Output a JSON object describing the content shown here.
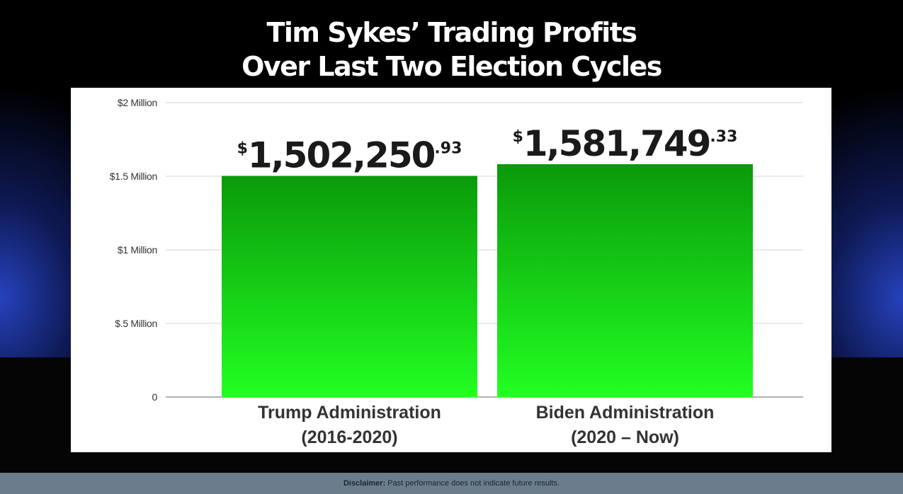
{
  "chart_data": {
    "type": "bar",
    "title_lines": [
      "Tim Sykes’ Trading Profits",
      "Over Last Two Election Cycles"
    ],
    "categories": [
      {
        "line1": "Trump Administration",
        "line2": "(2016-2020)"
      },
      {
        "line1": "Biden Administration",
        "line2": "(2020 – Now)"
      }
    ],
    "values": [
      1502250.93,
      1581749.33
    ],
    "value_labels": [
      {
        "currency": "$",
        "whole": "1,502,250",
        "cents": ".93"
      },
      {
        "currency": "$",
        "whole": "1,581,749",
        "cents": ".33"
      }
    ],
    "y_ticks": [
      {
        "value": 0,
        "label": "0"
      },
      {
        "value": 500000,
        "label": "$.5 Million"
      },
      {
        "value": 1000000,
        "label": "$1 Million"
      },
      {
        "value": 1500000,
        "label": "$1.5 Million"
      },
      {
        "value": 2000000,
        "label": "$2 Million"
      }
    ],
    "ylim": [
      0,
      2000000
    ],
    "grid": true,
    "legend": "none",
    "bar_color_top": "#0a9a0a",
    "bar_color_bottom": "#22ff22"
  },
  "disclaimer": {
    "label": "Disclaimer:",
    "text": " Past performance does not indicate future results."
  },
  "colors": {
    "background": "#000000",
    "panel": "#ffffff",
    "glow": "#2846c8",
    "disclaimer_bar": "#6b7d8c"
  }
}
